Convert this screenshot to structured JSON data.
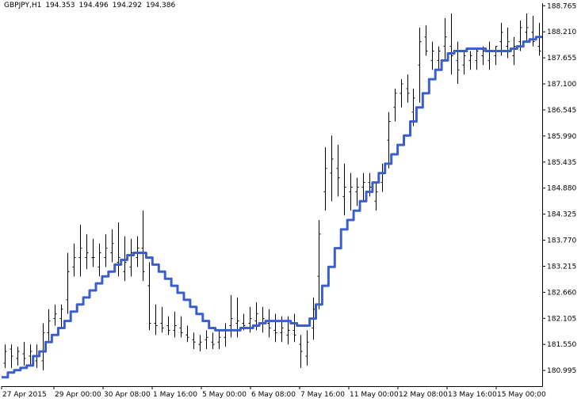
{
  "header": {
    "symbol": "GBPJPY,H1",
    "open": "194.353",
    "high": "194.496",
    "low": "194.292",
    "close": "194.386"
  },
  "colors": {
    "background": "#ffffff",
    "bars": "#000000",
    "moving_average": "#3a5fcd",
    "axis": "#000000"
  },
  "chart_data": {
    "type": "line",
    "title": "GBPJPY,H1",
    "ylim": [
      180.66,
      188.82
    ],
    "y_ticks": [
      "188.765",
      "188.210",
      "187.655",
      "187.100",
      "186.545",
      "185.990",
      "185.435",
      "184.880",
      "184.325",
      "183.770",
      "183.215",
      "182.660",
      "182.105",
      "181.550",
      "180.995"
    ],
    "x_ticks": [
      "27 Apr 2015",
      "29 Apr 00:00",
      "30 Apr 08:00",
      "1 May 16:00",
      "5 May 00:00",
      "6 May 08:00",
      "7 May 16:00",
      "11 May 00:00",
      "12 May 08:00",
      "13 May 16:00",
      "15 May 00:00"
    ],
    "grid": false,
    "series": [
      {
        "style": "ohlc-bars",
        "x": [
          0,
          8,
          16,
          24,
          32,
          40,
          48,
          56,
          64,
          72,
          80,
          88,
          96,
          104,
          112,
          120,
          128,
          136,
          144,
          152,
          160,
          168,
          176,
          184,
          192,
          200,
          208,
          216,
          224,
          232,
          240,
          248,
          256,
          264,
          272,
          280,
          288,
          296,
          304,
          312,
          320,
          328,
          336,
          344,
          352,
          360,
          368,
          376,
          384,
          392,
          400,
          408,
          416,
          424,
          432,
          440,
          448,
          456,
          464,
          472,
          480,
          488,
          496,
          504,
          512,
          520,
          528,
          536,
          544,
          552,
          560,
          568,
          576,
          584,
          592,
          600,
          608,
          616,
          624,
          632,
          640,
          648,
          656,
          664,
          672,
          680
        ],
        "high": [
          181.55,
          181.55,
          181.5,
          181.6,
          181.55,
          181.55,
          182.0,
          182.3,
          182.4,
          182.4,
          183.5,
          183.7,
          184.1,
          183.9,
          183.8,
          183.7,
          183.9,
          184.0,
          184.15,
          183.85,
          183.8,
          183.85,
          184.4,
          183.3,
          182.4,
          182.35,
          182.15,
          182.25,
          182.15,
          181.95,
          181.8,
          181.75,
          181.85,
          181.8,
          181.85,
          182.0,
          182.6,
          182.55,
          182.2,
          182.35,
          182.45,
          182.35,
          182.3,
          182.2,
          182.15,
          182.15,
          182.2,
          181.75,
          181.85,
          182.55,
          184.2,
          185.75,
          186.0,
          185.8,
          185.4,
          185.2,
          185.1,
          185.2,
          185.2,
          185.0,
          185.4,
          186.5,
          187.0,
          187.2,
          187.3,
          187.0,
          188.3,
          188.35,
          188.0,
          187.9,
          188.5,
          188.6,
          188.0,
          187.8,
          187.8,
          187.85,
          187.9,
          188.0,
          187.9,
          188.4,
          188.3,
          188.1,
          188.45,
          188.6,
          188.55,
          188.4
        ],
        "low": [
          181.05,
          181.05,
          181.1,
          181.1,
          181.1,
          181.05,
          181.0,
          181.6,
          181.95,
          181.9,
          182.2,
          183.0,
          183.0,
          183.15,
          183.2,
          183.0,
          183.2,
          183.3,
          183.0,
          182.9,
          183.0,
          183.2,
          182.9,
          181.85,
          181.75,
          181.8,
          181.75,
          181.7,
          181.7,
          181.6,
          181.45,
          181.4,
          181.45,
          181.45,
          181.45,
          181.5,
          181.7,
          181.7,
          181.85,
          181.8,
          181.85,
          181.8,
          181.7,
          181.6,
          181.6,
          181.55,
          181.6,
          181.05,
          181.1,
          181.65,
          182.3,
          184.4,
          184.6,
          184.7,
          184.3,
          184.4,
          184.5,
          184.6,
          184.7,
          184.4,
          184.8,
          185.3,
          186.3,
          186.6,
          186.7,
          186.2,
          186.7,
          187.7,
          187.4,
          187.4,
          187.6,
          187.3,
          187.1,
          187.3,
          187.4,
          187.4,
          187.5,
          187.4,
          187.5,
          187.7,
          187.65,
          187.5,
          187.8,
          188.0,
          187.9,
          187.7
        ],
        "open": [
          181.15,
          181.45,
          181.25,
          181.35,
          181.3,
          181.2,
          181.2,
          181.8,
          182.1,
          182.1,
          182.5,
          183.2,
          183.4,
          183.4,
          183.4,
          183.2,
          183.4,
          183.5,
          183.3,
          183.1,
          183.2,
          183.4,
          183.6,
          182.8,
          182.0,
          182.0,
          181.95,
          181.85,
          181.9,
          181.75,
          181.65,
          181.55,
          181.65,
          181.6,
          181.6,
          181.7,
          181.95,
          182.0,
          182.0,
          182.0,
          182.05,
          182.0,
          182.0,
          181.85,
          181.8,
          181.75,
          181.85,
          181.55,
          181.3,
          181.9,
          183.0,
          184.8,
          185.2,
          185.3,
          184.7,
          184.8,
          184.8,
          184.9,
          185.0,
          184.6,
          185.0,
          185.9,
          186.6,
          186.9,
          187.0,
          186.5,
          187.5,
          188.1,
          187.6,
          187.6,
          187.9,
          187.9,
          187.6,
          187.5,
          187.6,
          187.6,
          187.7,
          187.6,
          187.7,
          188.0,
          187.9,
          187.7,
          188.0,
          188.2,
          188.2,
          187.9
        ],
        "close": [
          181.4,
          181.3,
          181.4,
          181.25,
          181.4,
          181.3,
          181.8,
          182.05,
          182.2,
          182.3,
          183.1,
          183.4,
          183.6,
          183.5,
          183.4,
          183.5,
          183.6,
          183.7,
          183.4,
          183.3,
          183.5,
          183.6,
          183.1,
          182.0,
          181.95,
          181.9,
          181.85,
          181.95,
          181.8,
          181.7,
          181.6,
          181.6,
          181.7,
          181.55,
          181.7,
          181.85,
          182.1,
          182.05,
          181.95,
          182.1,
          182.2,
          182.1,
          181.9,
          181.8,
          181.9,
          181.85,
          181.75,
          181.4,
          181.6,
          182.3,
          183.9,
          185.3,
          185.5,
          185.1,
          184.9,
          184.9,
          184.9,
          185.0,
          184.9,
          184.8,
          185.2,
          186.3,
          186.9,
          187.1,
          186.9,
          186.8,
          188.0,
          187.8,
          187.8,
          187.8,
          188.1,
          187.7,
          187.4,
          187.7,
          187.7,
          187.8,
          187.8,
          187.8,
          187.9,
          188.2,
          188.0,
          187.9,
          188.3,
          188.3,
          188.0,
          187.8
        ]
      },
      {
        "style": "line",
        "x": [
          0,
          8,
          16,
          24,
          32,
          40,
          48,
          56,
          64,
          72,
          80,
          88,
          96,
          104,
          112,
          120,
          128,
          136,
          144,
          152,
          160,
          168,
          176,
          184,
          192,
          200,
          208,
          216,
          224,
          232,
          240,
          248,
          256,
          264,
          272,
          280,
          288,
          296,
          304,
          312,
          320,
          328,
          336,
          344,
          352,
          360,
          368,
          376,
          384,
          392,
          400,
          408,
          416,
          424,
          432,
          440,
          448,
          456,
          464,
          472,
          480,
          488,
          496,
          504,
          512,
          520,
          528,
          536,
          544,
          552,
          560,
          568,
          576,
          584,
          592,
          600,
          608,
          616,
          624,
          632,
          640,
          648,
          656,
          664,
          672,
          680
        ],
        "values": [
          180.85,
          180.95,
          181.0,
          181.05,
          181.1,
          181.3,
          181.4,
          181.6,
          181.75,
          181.9,
          182.05,
          182.25,
          182.4,
          182.55,
          182.7,
          182.85,
          183.0,
          183.1,
          183.25,
          183.35,
          183.45,
          183.5,
          183.5,
          183.4,
          183.25,
          183.1,
          182.95,
          182.8,
          182.65,
          182.5,
          182.35,
          182.2,
          182.05,
          181.9,
          181.85,
          181.85,
          181.85,
          181.85,
          181.9,
          181.9,
          181.95,
          182.0,
          182.05,
          182.05,
          182.05,
          182.05,
          182.0,
          181.95,
          181.95,
          182.1,
          182.4,
          182.8,
          183.2,
          183.6,
          184.0,
          184.2,
          184.4,
          184.6,
          184.8,
          185.0,
          185.2,
          185.4,
          185.6,
          185.8,
          186.0,
          186.3,
          186.6,
          186.9,
          187.2,
          187.4,
          187.6,
          187.75,
          187.8,
          187.8,
          187.85,
          187.85,
          187.85,
          187.8,
          187.8,
          187.8,
          187.8,
          187.85,
          187.9,
          188.0,
          188.05,
          188.1
        ]
      }
    ]
  }
}
